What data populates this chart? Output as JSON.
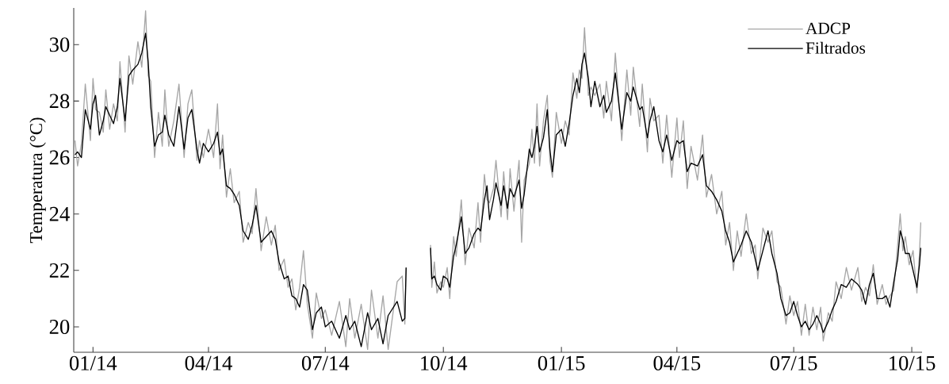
{
  "chart_data": {
    "type": "line",
    "ylabel": "Temperatura (°C)",
    "x": [
      "2013-12-18",
      "2013-12-20",
      "2013-12-23",
      "2013-12-26",
      "2013-12-30",
      "2014-01-01",
      "2014-01-03",
      "2014-01-06",
      "2014-01-09",
      "2014-01-11",
      "2014-01-14",
      "2014-01-17",
      "2014-01-20",
      "2014-01-22",
      "2014-01-26",
      "2014-01-29",
      "2014-02-01",
      "2014-02-05",
      "2014-02-08",
      "2014-02-11",
      "2014-02-13",
      "2014-02-15",
      "2014-02-18",
      "2014-02-21",
      "2014-02-24",
      "2014-02-26",
      "2014-03-01",
      "2014-03-05",
      "2014-03-09",
      "2014-03-13",
      "2014-03-16",
      "2014-03-19",
      "2014-03-23",
      "2014-03-25",
      "2014-03-28",
      "2014-04-01",
      "2014-04-05",
      "2014-04-08",
      "2014-04-10",
      "2014-04-12",
      "2014-04-15",
      "2014-04-18",
      "2014-04-21",
      "2014-04-25",
      "2014-04-28",
      "2014-05-02",
      "2014-05-05",
      "2014-05-08",
      "2014-05-12",
      "2014-05-16",
      "2014-05-20",
      "2014-05-23",
      "2014-05-26",
      "2014-05-30",
      "2014-06-02",
      "2014-06-05",
      "2014-06-08",
      "2014-06-11",
      "2014-06-14",
      "2014-06-17",
      "2014-06-21",
      "2014-06-24",
      "2014-06-28",
      "2014-07-01",
      "2014-07-06",
      "2014-07-12",
      "2014-07-17",
      "2014-07-20",
      "2014-07-24",
      "2014-07-29",
      "2014-08-03",
      "2014-08-06",
      "2014-08-11",
      "2014-08-15",
      "2014-08-19",
      "2014-08-26",
      "2014-08-30",
      "2014-09-01",
      "2014-09-02",
      "2014-09-10",
      "2014-09-21",
      "2014-09-22",
      "2014-09-24",
      "2014-09-26",
      "2014-09-29",
      "2014-10-01",
      "2014-10-04",
      "2014-10-06",
      "2014-10-09",
      "2014-10-11",
      "2014-10-15",
      "2014-10-18",
      "2014-10-21",
      "2014-10-25",
      "2014-10-28",
      "2014-10-30",
      "2014-11-02",
      "2014-11-04",
      "2014-11-06",
      "2014-11-09",
      "2014-11-11",
      "2014-11-15",
      "2014-11-17",
      "2014-11-20",
      "2014-11-22",
      "2014-11-25",
      "2014-11-29",
      "2014-12-01",
      "2014-12-03",
      "2014-12-07",
      "2014-12-09",
      "2014-12-11",
      "2014-12-13",
      "2014-12-15",
      "2014-12-18",
      "2014-12-21",
      "2014-12-23",
      "2014-12-25",
      "2014-12-28",
      "2015-01-01",
      "2015-01-04",
      "2015-01-07",
      "2015-01-10",
      "2015-01-13",
      "2015-01-15",
      "2015-01-17",
      "2015-01-19",
      "2015-01-22",
      "2015-01-24",
      "2015-01-27",
      "2015-01-31",
      "2015-02-03",
      "2015-02-05",
      "2015-02-09",
      "2015-02-12",
      "2015-02-17",
      "2015-02-21",
      "2015-02-24",
      "2015-02-26",
      "2015-03-03",
      "2015-03-05",
      "2015-03-09",
      "2015-03-11",
      "2015-03-14",
      "2015-03-18",
      "2015-03-21",
      "2015-03-24",
      "2015-03-28",
      "2015-04-01",
      "2015-04-03",
      "2015-04-06",
      "2015-04-09",
      "2015-04-12",
      "2015-04-17",
      "2015-04-21",
      "2015-04-24",
      "2015-04-28",
      "2015-05-02",
      "2015-05-06",
      "2015-05-09",
      "2015-05-12",
      "2015-05-15",
      "2015-05-18",
      "2015-05-21",
      "2015-05-25",
      "2015-05-29",
      "2015-06-01",
      "2015-06-03",
      "2015-06-07",
      "2015-06-11",
      "2015-06-14",
      "2015-06-18",
      "2015-06-21",
      "2015-06-25",
      "2015-06-28",
      "2015-07-01",
      "2015-07-04",
      "2015-07-07",
      "2015-07-10",
      "2015-07-13",
      "2015-07-16",
      "2015-07-19",
      "2015-07-22",
      "2015-07-24",
      "2015-07-28",
      "2015-07-31",
      "2015-08-03",
      "2015-08-07",
      "2015-08-11",
      "2015-08-15",
      "2015-08-20",
      "2015-08-23",
      "2015-08-26",
      "2015-08-29",
      "2015-09-01",
      "2015-09-04",
      "2015-09-08",
      "2015-09-11",
      "2015-09-14",
      "2015-09-17",
      "2015-09-20",
      "2015-09-22",
      "2015-09-24",
      "2015-09-26",
      "2015-09-29",
      "2015-10-02",
      "2015-10-05",
      "2015-10-07",
      "2015-10-08"
    ],
    "series": [
      {
        "name": "ADCP",
        "color": "#a6a6a6",
        "values": [
          26.6,
          25.7,
          26.5,
          28.6,
          26.6,
          28.8,
          27.7,
          27.6,
          26.9,
          28.4,
          27.0,
          27.9,
          27.3,
          29.4,
          26.9,
          29.6,
          28.6,
          30.1,
          29.2,
          31.2,
          28.9,
          28.7,
          26.0,
          27.6,
          26.4,
          28.4,
          26.4,
          27.3,
          28.6,
          26.0,
          27.9,
          28.4,
          25.9,
          26.6,
          26.0,
          27.0,
          26.0,
          27.9,
          25.6,
          26.8,
          24.6,
          25.6,
          24.4,
          24.8,
          23.0,
          23.7,
          23.3,
          24.9,
          22.7,
          23.9,
          22.9,
          23.6,
          22.0,
          22.4,
          21.4,
          21.7,
          20.6,
          21.4,
          22.7,
          20.8,
          19.6,
          21.2,
          20.3,
          20.6,
          19.7,
          20.9,
          19.3,
          21.0,
          19.6,
          20.8,
          19.2,
          21.3,
          19.6,
          21.1,
          19.2,
          21.6,
          21.8,
          20.1,
          22.1,
          null,
          22.9,
          21.4,
          22.3,
          21.2,
          21.6,
          21.4,
          22.1,
          21.0,
          23.2,
          22.5,
          24.5,
          22.2,
          23.5,
          22.8,
          24.4,
          23.0,
          25.4,
          24.5,
          24.4,
          24.9,
          25.9,
          23.9,
          25.5,
          23.8,
          25.6,
          24.1,
          25.9,
          23.0,
          25.2,
          25.8,
          27.0,
          25.8,
          27.9,
          25.7,
          27.3,
          28.2,
          25.9,
          25.3,
          27.6,
          26.5,
          27.3,
          26.8,
          29.0,
          28.1,
          29.1,
          28.8,
          30.6,
          28.2,
          28.5,
          28.2,
          28.6,
          27.4,
          28.7,
          27.3,
          29.7,
          26.6,
          29.1,
          27.5,
          29.2,
          27.1,
          28.6,
          26.2,
          28.1,
          27.3,
          27.5,
          25.8,
          27.5,
          25.3,
          27.4,
          26.0,
          27.3,
          24.9,
          26.4,
          25.2,
          26.8,
          24.6,
          25.4,
          24.0,
          24.8,
          22.9,
          23.7,
          22.0,
          23.4,
          22.5,
          24.0,
          22.6,
          22.9,
          21.7,
          23.5,
          23.0,
          23.4,
          21.6,
          21.4,
          20.1,
          21.1,
          20.4,
          20.9,
          19.7,
          20.8,
          19.7,
          20.7,
          19.9,
          20.7,
          19.5,
          20.5,
          20.2,
          21.6,
          21.0,
          22.1,
          21.3,
          22.1,
          20.9,
          21.4,
          21.1,
          22.2,
          20.8,
          21.5,
          20.8,
          21.1,
          21.3,
          22.9,
          24.0,
          22.7,
          23.2,
          22.2,
          22.7,
          21.2,
          22.6,
          23.7
        ]
      },
      {
        "name": "Filtrados",
        "color": "#000000",
        "values": [
          26.1,
          26.2,
          26.0,
          27.7,
          27.0,
          27.9,
          28.2,
          26.8,
          27.3,
          27.8,
          27.5,
          27.2,
          27.8,
          28.8,
          27.3,
          28.9,
          29.1,
          29.3,
          29.7,
          30.4,
          29.4,
          27.8,
          26.4,
          26.8,
          26.9,
          27.5,
          26.8,
          26.4,
          27.8,
          26.3,
          27.4,
          27.7,
          26.3,
          25.8,
          26.5,
          26.2,
          26.5,
          26.9,
          26.1,
          26.3,
          25.0,
          24.9,
          24.7,
          24.3,
          23.4,
          23.1,
          23.6,
          24.3,
          23.0,
          23.2,
          23.4,
          23.1,
          22.3,
          21.7,
          21.8,
          21.1,
          21.0,
          20.7,
          21.5,
          21.3,
          19.9,
          20.5,
          20.7,
          20.0,
          20.2,
          19.6,
          20.4,
          19.9,
          20.2,
          19.3,
          20.5,
          19.9,
          20.3,
          19.4,
          20.4,
          20.9,
          20.2,
          20.3,
          22.1,
          null,
          22.8,
          21.7,
          21.8,
          21.5,
          21.3,
          21.8,
          21.7,
          21.4,
          22.5,
          22.9,
          23.9,
          22.6,
          22.8,
          23.3,
          23.5,
          23.4,
          24.5,
          25.0,
          23.8,
          24.5,
          25.1,
          24.3,
          25.0,
          24.2,
          24.9,
          24.6,
          25.2,
          24.2,
          24.7,
          26.3,
          26.0,
          26.4,
          27.1,
          26.2,
          26.7,
          27.7,
          26.3,
          25.5,
          26.8,
          27.0,
          26.4,
          27.2,
          28.2,
          28.8,
          28.3,
          29.3,
          29.7,
          28.8,
          27.8,
          28.7,
          27.8,
          28.2,
          27.6,
          28.0,
          29.0,
          27.0,
          28.3,
          28.0,
          28.5,
          27.7,
          27.8,
          26.7,
          27.3,
          27.8,
          26.6,
          26.2,
          26.8,
          25.9,
          26.6,
          26.5,
          26.6,
          25.5,
          25.8,
          25.7,
          26.1,
          25.0,
          24.8,
          24.5,
          24.1,
          23.4,
          23.0,
          22.3,
          22.6,
          22.9,
          23.4,
          23.0,
          22.4,
          22.0,
          22.7,
          23.4,
          22.6,
          21.9,
          21.0,
          20.4,
          20.5,
          20.9,
          20.4,
          20.0,
          20.2,
          19.9,
          20.1,
          20.4,
          20.1,
          19.8,
          20.2,
          20.6,
          20.9,
          21.5,
          21.4,
          21.7,
          21.5,
          21.3,
          20.8,
          21.5,
          21.9,
          21.0,
          21.0,
          21.1,
          20.7,
          21.6,
          22.4,
          23.4,
          23.1,
          22.6,
          22.6,
          22.0,
          21.4,
          22.2,
          22.8
        ]
      }
    ],
    "xlim": [
      "2013-12-17",
      "2015-10-09"
    ],
    "ylim": [
      19.1,
      31.3
    ],
    "xticks": [
      {
        "value": "2014-01-01",
        "label": "01/14"
      },
      {
        "value": "2014-04-01",
        "label": "04/14"
      },
      {
        "value": "2014-07-01",
        "label": "07/14"
      },
      {
        "value": "2014-10-01",
        "label": "10/14"
      },
      {
        "value": "2015-01-01",
        "label": "01/15"
      },
      {
        "value": "2015-04-01",
        "label": "04/15"
      },
      {
        "value": "2015-07-01",
        "label": "07/15"
      },
      {
        "value": "2015-10-01",
        "label": "10/15"
      }
    ],
    "yticks": [
      20,
      22,
      24,
      26,
      28,
      30
    ],
    "legend": "top right"
  }
}
